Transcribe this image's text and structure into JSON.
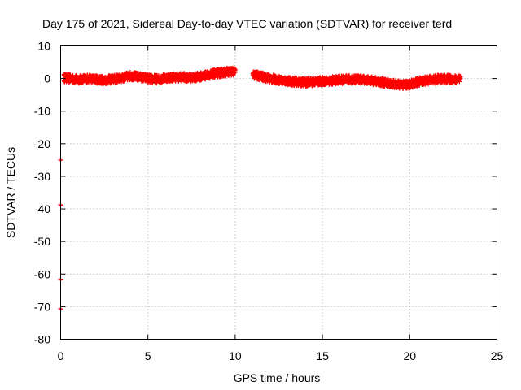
{
  "colors": {
    "series": "#ff0000",
    "grid": "#a0a0a0",
    "axis": "#000000",
    "background": "#ffffff"
  },
  "chart_data": {
    "type": "scatter",
    "title": "Day 175 of 2021, Sidereal Day-to-day VTEC variation (SDTVAR) for receiver terd",
    "xlabel": "GPS time / hours",
    "ylabel": "SDTVAR / TECUs",
    "xlim": [
      0,
      25
    ],
    "ylim": [
      -80,
      10
    ],
    "xticks": [
      0,
      5,
      10,
      15,
      20,
      25
    ],
    "yticks": [
      10,
      0,
      -10,
      -20,
      -30,
      -40,
      -50,
      -60,
      -70,
      -80
    ],
    "grid": true,
    "series": [
      {
        "name": "SDTVAR",
        "marker": "plus",
        "trend": {
          "x": [
            0.2,
            0.5,
            1.0,
            1.5,
            2.0,
            2.5,
            3.0,
            3.5,
            4.0,
            4.5,
            5.0,
            5.5,
            6.0,
            6.5,
            7.0,
            7.5,
            8.0,
            8.5,
            9.0,
            9.5,
            10.0,
            10.5,
            11.0,
            11.5,
            12.0,
            12.5,
            13.0,
            13.5,
            14.0,
            14.5,
            15.0,
            15.5,
            16.0,
            16.5,
            17.0,
            17.5,
            18.0,
            18.5,
            19.0,
            19.5,
            20.0,
            20.5,
            21.0,
            21.5,
            22.0,
            22.5,
            22.9
          ],
          "y": [
            0.2,
            0.0,
            -0.3,
            0.0,
            -0.2,
            -0.5,
            -0.2,
            0.2,
            0.8,
            0.5,
            0.0,
            -0.2,
            0.2,
            0.4,
            0.4,
            0.2,
            0.6,
            1.2,
            1.6,
            2.0,
            2.3,
            null,
            1.2,
            0.6,
            0.0,
            -0.4,
            -0.8,
            -1.0,
            -1.2,
            -1.0,
            -0.8,
            -0.6,
            -0.4,
            -0.3,
            -0.2,
            -0.4,
            -0.8,
            -1.2,
            -1.6,
            -2.0,
            -1.8,
            -1.0,
            -0.5,
            -0.2,
            -0.1,
            -0.2,
            -0.3
          ]
        },
        "band": 1.2,
        "outliers": [
          {
            "x": 0.0,
            "y": -25.0
          },
          {
            "x": 0.0,
            "y": -38.8
          },
          {
            "x": 0.0,
            "y": -61.6
          },
          {
            "x": 0.0,
            "y": -70.7
          }
        ]
      }
    ]
  }
}
